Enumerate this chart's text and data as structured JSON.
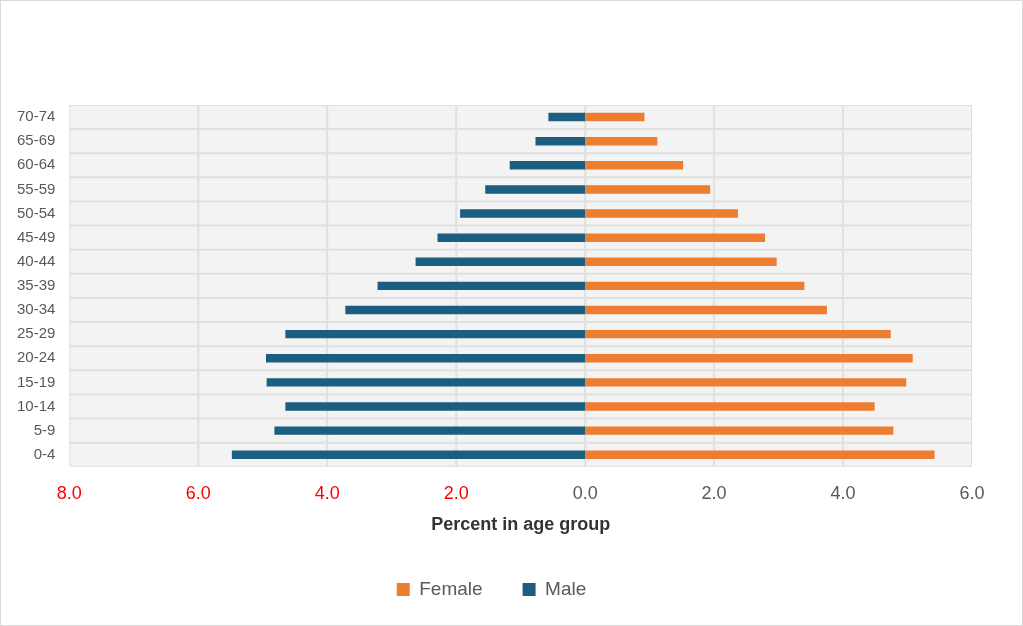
{
  "chart_data": {
    "type": "bar",
    "orientation": "horizontal",
    "stacked": true,
    "xlabel": "Percent in age group",
    "categories": [
      "70-74",
      "65-69",
      "60-64",
      "55-59",
      "50-54",
      "45-49",
      "40-44",
      "35-39",
      "30-34",
      "25-29",
      "20-24",
      "15-19",
      "10-14",
      "5-9",
      "0-4"
    ],
    "series": [
      {
        "name": "Female",
        "color": "#ed7d31",
        "values": [
          0.92,
          1.12,
          1.52,
          1.94,
          2.37,
          2.79,
          2.97,
          3.4,
          3.75,
          4.74,
          5.08,
          4.98,
          4.49,
          4.78,
          5.42
        ]
      },
      {
        "name": "Male",
        "color": "#1b5e80",
        "values": [
          -0.57,
          -0.77,
          -1.17,
          -1.55,
          -1.94,
          -2.29,
          -2.63,
          -3.22,
          -3.72,
          -4.65,
          -4.95,
          -4.94,
          -4.65,
          -4.82,
          -5.48
        ]
      }
    ],
    "xlim": [
      -8,
      6
    ],
    "xticks": [
      {
        "value": -8,
        "label": "8.0"
      },
      {
        "value": -6,
        "label": "6.0"
      },
      {
        "value": -4,
        "label": "4.0"
      },
      {
        "value": -2,
        "label": "2.0"
      },
      {
        "value": 0,
        "label": "0.0"
      },
      {
        "value": 2,
        "label": "2.0"
      },
      {
        "value": 4,
        "label": "4.0"
      },
      {
        "value": 6,
        "label": "6.0"
      }
    ],
    "grid": true,
    "legend": "bottom"
  }
}
